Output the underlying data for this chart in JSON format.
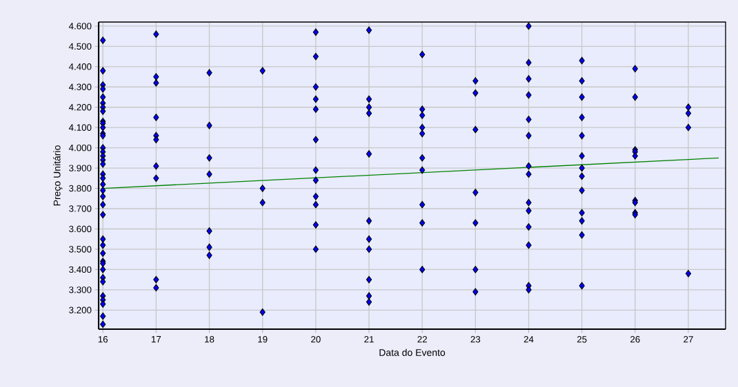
{
  "chart_data": {
    "type": "scatter",
    "xlabel": "Data do Evento",
    "ylabel": "Preço Unitário",
    "xlim": [
      15.92,
      27.7
    ],
    "ylim": [
      3.106,
      4.62
    ],
    "xticks": [
      16,
      17,
      18,
      19,
      20,
      21,
      22,
      23,
      24,
      25,
      26,
      27
    ],
    "yticks": [
      {
        "value": 3.2,
        "label": "3.200"
      },
      {
        "value": 3.3,
        "label": "3.300"
      },
      {
        "value": 3.4,
        "label": "3.400"
      },
      {
        "value": 3.5,
        "label": "3.500"
      },
      {
        "value": 3.6,
        "label": "3.600"
      },
      {
        "value": 3.7,
        "label": "3.700"
      },
      {
        "value": 3.8,
        "label": "3.800"
      },
      {
        "value": 3.9,
        "label": "3.900"
      },
      {
        "value": 4.0,
        "label": "4.000"
      },
      {
        "value": 4.1,
        "label": "4.100"
      },
      {
        "value": 4.2,
        "label": "4.200"
      },
      {
        "value": 4.3,
        "label": "4.300"
      },
      {
        "value": 4.4,
        "label": "4.400"
      },
      {
        "value": 4.5,
        "label": "4.500"
      },
      {
        "value": 4.6,
        "label": "4.600"
      }
    ],
    "grid": true,
    "series": [
      {
        "marker": "diamond",
        "color": "#0000ff",
        "x": [
          16,
          16,
          16,
          16,
          16,
          16,
          16,
          16,
          16,
          16,
          16,
          16,
          16,
          16,
          16,
          16,
          16,
          16,
          16,
          16,
          16,
          16,
          16,
          16,
          16,
          16,
          16,
          16,
          16,
          16,
          16,
          16,
          16,
          16,
          16,
          16,
          16,
          16,
          17,
          17,
          17,
          17,
          17,
          17,
          17,
          17,
          17,
          17,
          18,
          18,
          18,
          18,
          18,
          18,
          18,
          19,
          19,
          19,
          19,
          20,
          20,
          20,
          20,
          20,
          20,
          20,
          20,
          20,
          20,
          20,
          20,
          21,
          21,
          21,
          21,
          21,
          21,
          21,
          21,
          21,
          21,
          21,
          22,
          22,
          22,
          22,
          22,
          22,
          22,
          22,
          22,
          22,
          23,
          23,
          23,
          23,
          23,
          23,
          23,
          24,
          24,
          24,
          24,
          24,
          24,
          24,
          24,
          24,
          24,
          24,
          24,
          24,
          24,
          25,
          25,
          25,
          25,
          25,
          25,
          25,
          25,
          25,
          25,
          25,
          25,
          25,
          26,
          26,
          26,
          26,
          26,
          26,
          26,
          26,
          26,
          27,
          27,
          27,
          27
        ],
        "values": [
          4.53,
          4.38,
          4.31,
          4.29,
          4.25,
          4.22,
          4.2,
          4.18,
          4.13,
          4.12,
          4.1,
          4.07,
          4.06,
          4.0,
          3.98,
          3.96,
          3.94,
          3.92,
          3.87,
          3.85,
          3.82,
          3.79,
          3.76,
          3.72,
          3.67,
          3.55,
          3.52,
          3.48,
          3.44,
          3.43,
          3.4,
          3.36,
          3.34,
          3.27,
          3.25,
          3.23,
          3.17,
          3.13,
          4.56,
          4.35,
          4.32,
          4.15,
          4.06,
          4.04,
          3.91,
          3.85,
          3.35,
          3.31,
          4.37,
          4.11,
          3.95,
          3.87,
          3.59,
          3.51,
          3.47,
          4.38,
          3.8,
          3.73,
          3.19,
          4.57,
          4.45,
          4.3,
          4.24,
          4.19,
          4.04,
          3.89,
          3.84,
          3.76,
          3.72,
          3.62,
          3.5,
          4.58,
          4.24,
          4.2,
          4.17,
          3.97,
          3.64,
          3.55,
          3.5,
          3.35,
          3.27,
          3.24,
          4.46,
          4.19,
          4.16,
          4.1,
          4.07,
          3.95,
          3.89,
          3.72,
          3.63,
          3.4,
          4.33,
          4.27,
          4.09,
          3.78,
          3.63,
          3.4,
          3.29,
          4.6,
          4.42,
          4.34,
          4.26,
          4.14,
          4.06,
          3.91,
          3.87,
          3.73,
          3.69,
          3.61,
          3.52,
          3.32,
          3.3,
          4.43,
          4.33,
          4.25,
          4.15,
          4.06,
          3.96,
          3.9,
          3.86,
          3.79,
          3.68,
          3.64,
          3.57,
          3.32,
          4.39,
          4.25,
          3.99,
          3.98,
          3.96,
          3.74,
          3.73,
          3.68,
          3.67,
          4.2,
          4.17,
          4.1,
          3.38
        ]
      },
      {
        "type": "line",
        "marker": "none",
        "color": "#008000",
        "x": [
          16,
          27.57
        ],
        "values": [
          3.8,
          3.95
        ]
      }
    ]
  }
}
